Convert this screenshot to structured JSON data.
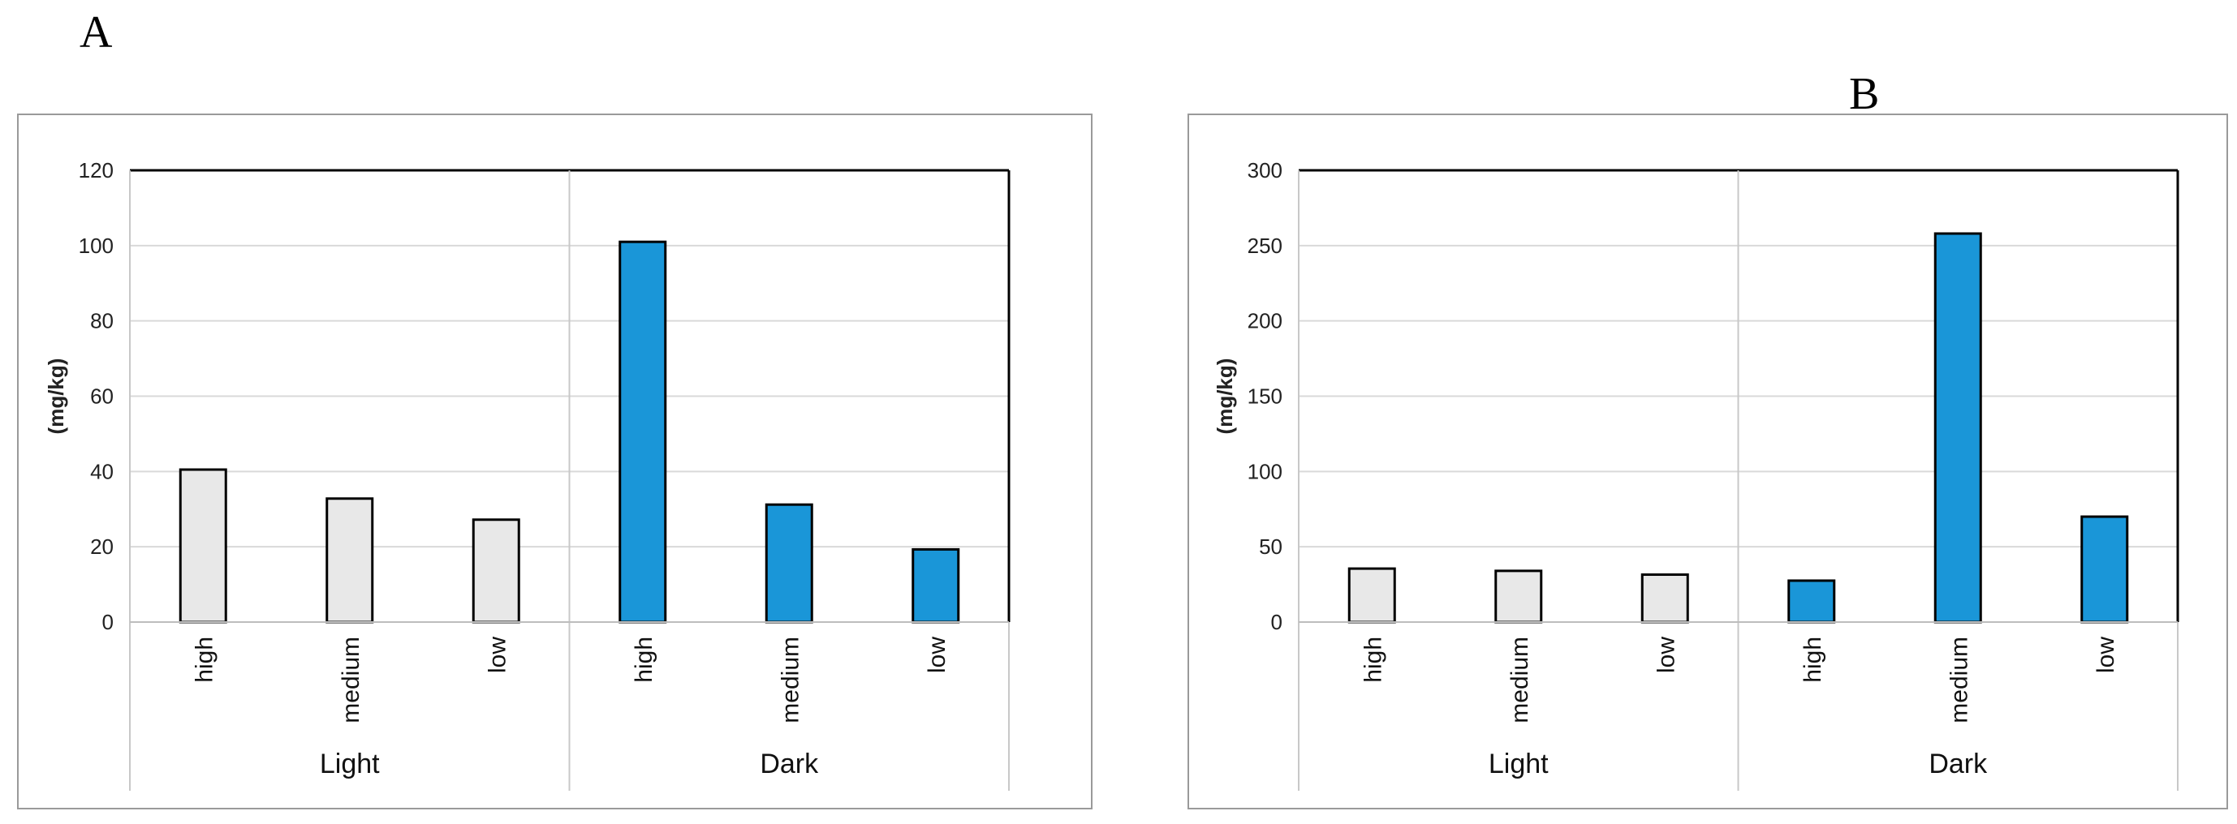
{
  "panels": [
    {
      "letter": "A"
    },
    {
      "letter": "B"
    }
  ],
  "colors": {
    "light_bar": "#e8e8e8",
    "dark_bar": "#1a96d8",
    "bar_stroke": "#000000",
    "grid": "#d9d9d9",
    "frame": "#9a9a9a"
  },
  "chart_data": [
    {
      "type": "bar",
      "title": "",
      "xlabel": "",
      "ylabel": "(mg/kg)",
      "ylim": [
        0,
        120
      ],
      "yticks": [
        0,
        20,
        40,
        60,
        80,
        100,
        120
      ],
      "grid": true,
      "groups": [
        {
          "name": "Light",
          "categories": [
            "high",
            "medium",
            "low"
          ],
          "values": [
            40.5,
            32.8,
            27.2
          ]
        },
        {
          "name": "Dark",
          "categories": [
            "high",
            "medium",
            "low"
          ],
          "values": [
            101,
            31.2,
            19.3
          ]
        }
      ]
    },
    {
      "type": "bar",
      "title": "",
      "xlabel": "",
      "ylabel": "(mg/kg)",
      "ylim": [
        0,
        300
      ],
      "yticks": [
        0,
        50,
        100,
        150,
        200,
        250,
        300
      ],
      "grid": true,
      "groups": [
        {
          "name": "Light",
          "categories": [
            "high",
            "medium",
            "low"
          ],
          "values": [
            35.5,
            34,
            31.5
          ]
        },
        {
          "name": "Dark",
          "categories": [
            "high",
            "medium",
            "low"
          ],
          "values": [
            27.5,
            258,
            70
          ]
        }
      ]
    }
  ]
}
